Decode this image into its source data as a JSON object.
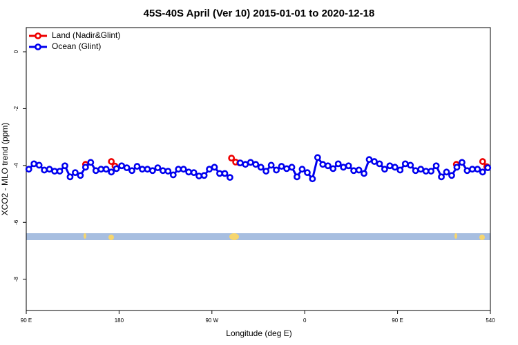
{
  "chart_data": {
    "type": "line",
    "title": "45S-40S April (Ver 10)   2015-01-01 to 2020-12-18",
    "x_label": "Longitude (deg E)",
    "y_label": "XCO2 - MLO trend (ppm)",
    "xlim": [
      90,
      540
    ],
    "xticks": [
      {
        "value": 90,
        "label": "90 E"
      },
      180,
      {
        "value": 270,
        "label": "90 W"
      },
      {
        "value": 360,
        "label": "0"
      },
      {
        "value": 450,
        "label": "90 E"
      },
      540
    ],
    "ylim": [
      -9.1,
      0.85
    ],
    "yticks": [
      0,
      -2,
      -4,
      -6,
      -8
    ],
    "legend": "top-left",
    "series": [
      {
        "name": "Land (Nadir&Glint)",
        "color": "#ee0000",
        "x": [
          147.5,
          null,
          172.5,
          176,
          null,
          289,
          293,
          297,
          null,
          507,
          null,
          532.5,
          536.5
        ],
        "values": [
          -3.96,
          null,
          -3.86,
          -4.02,
          null,
          -3.74,
          -3.88,
          -3.91,
          null,
          -3.96,
          null,
          -3.86,
          -4.04
        ]
      },
      {
        "name": "Ocean (Glint)",
        "color": "#0000ee",
        "x": [
          92.5,
          97.5,
          102.5,
          107.5,
          112.5,
          117.5,
          122.5,
          127.5,
          132.5,
          137.5,
          142.5,
          147.5,
          152.5,
          157.5,
          162.5,
          167.5,
          172.5,
          177.5,
          182.5,
          187.5,
          192.5,
          197.5,
          202.5,
          207.5,
          212.5,
          217.5,
          222.5,
          227.5,
          232.5,
          237.5,
          242.5,
          247.5,
          252.5,
          257.5,
          262.5,
          267.5,
          272.5,
          277.5,
          282.5,
          287.5,
          292.5,
          297.5,
          302.5,
          307.5,
          312.5,
          317.5,
          322.5,
          327.5,
          332.5,
          337.5,
          342.5,
          347.5,
          352.5,
          357.5,
          362.5,
          367.5,
          372.5,
          377.5,
          382.5,
          387.5,
          392.5,
          397.5,
          402.5,
          407.5,
          412.5,
          417.5,
          422.5,
          427.5,
          432.5,
          437.5,
          442.5,
          447.5,
          452.5,
          457.5,
          462.5,
          467.5,
          472.5,
          477.5,
          482.5,
          487.5,
          492.5,
          497.5,
          502.5,
          507.5,
          512.5,
          517.5,
          522.5,
          527.5,
          532.5,
          537.5
        ],
        "values": [
          -4.13,
          -3.94,
          -3.99,
          -4.16,
          -4.13,
          -4.2,
          -4.2,
          -4.01,
          -4.4,
          -4.25,
          -4.35,
          -4.06,
          -3.89,
          -4.18,
          -4.13,
          -4.13,
          -4.23,
          -4.11,
          -4.01,
          -4.08,
          -4.18,
          -4.03,
          -4.13,
          -4.13,
          -4.18,
          -4.08,
          -4.18,
          -4.2,
          -4.33,
          -4.13,
          -4.13,
          -4.23,
          -4.25,
          -4.37,
          -4.35,
          -4.13,
          -4.06,
          -4.28,
          -4.28,
          -4.42,
          null,
          -3.91,
          -3.96,
          -3.89,
          -3.96,
          -4.06,
          -4.2,
          -3.99,
          -4.16,
          -4.03,
          -4.11,
          -4.06,
          -4.4,
          -4.13,
          -4.25,
          -4.47,
          -3.72,
          -3.96,
          -4.01,
          -4.11,
          -3.94,
          -4.06,
          -4.01,
          -4.18,
          -4.16,
          -4.28,
          -3.79,
          -3.86,
          -3.94,
          -4.13,
          -4.01,
          -4.06,
          -4.16,
          -3.94,
          -3.99,
          -4.18,
          -4.13,
          -4.2,
          -4.2,
          -4.01,
          -4.4,
          -4.23,
          -4.35,
          -4.06,
          -3.89,
          -4.18,
          -4.13,
          -4.13,
          -4.23,
          -4.08
        ]
      }
    ]
  }
}
